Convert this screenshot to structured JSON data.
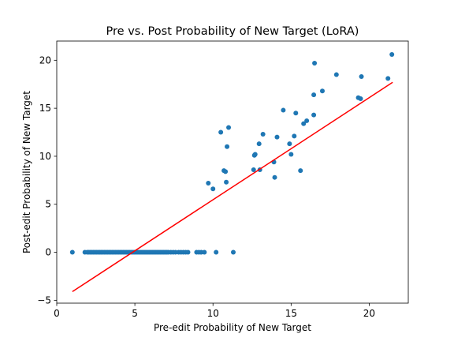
{
  "chart_data": {
    "type": "scatter",
    "title": "Pre vs. Post Probability of New Target (LoRA)",
    "xlabel": "Pre-edit Probability of New Target",
    "ylabel": "Post-edit Probability of New Target",
    "xlim": [
      0,
      22.5
    ],
    "ylim": [
      -5.3,
      22.0
    ],
    "xticks": [
      0,
      5,
      10,
      15,
      20
    ],
    "yticks": [
      -5,
      0,
      5,
      10,
      15,
      20
    ],
    "xtick_labels": [
      "0",
      "5",
      "10",
      "15",
      "20"
    ],
    "ytick_labels": [
      "−5",
      "0",
      "5",
      "10",
      "15",
      "20"
    ],
    "grid": false,
    "point_color": "#1f77b4",
    "line_color": "#ff0000",
    "fit_line": {
      "x": [
        1.0,
        21.5
      ],
      "y": [
        -4.1,
        17.7
      ]
    },
    "series": [
      {
        "x": [
          1.0,
          1.8,
          1.95,
          2.05,
          2.15,
          2.25,
          2.35,
          2.45,
          2.55,
          2.65,
          2.75,
          2.85,
          2.95,
          3.05,
          3.15,
          3.25,
          3.35,
          3.45,
          3.55,
          3.65,
          3.75,
          3.85,
          3.95,
          4.05,
          4.15,
          4.25,
          4.35,
          4.45,
          4.55,
          4.65,
          4.75,
          4.85,
          4.95,
          5.05,
          5.15,
          5.25,
          5.35,
          5.45,
          5.55,
          5.65,
          5.75,
          5.85,
          5.95,
          6.05,
          6.15,
          6.25,
          6.35,
          6.45,
          6.55,
          6.65,
          6.75,
          6.85,
          6.95,
          7.05,
          7.15,
          7.3,
          7.45,
          7.6,
          7.8,
          7.95,
          8.1,
          8.25,
          8.4,
          8.95,
          9.1,
          9.25,
          9.45,
          10.2,
          11.3,
          9.7,
          10.0,
          10.5,
          10.7,
          10.8,
          10.85,
          10.9,
          11.0,
          12.6,
          12.7,
          12.65,
          12.95,
          13.0,
          13.2,
          13.9,
          13.95,
          14.1,
          14.5,
          14.9,
          15.0,
          15.2,
          15.3,
          15.6,
          15.8,
          16.0,
          16.45,
          16.5,
          16.45,
          17.0,
          17.9,
          19.3,
          19.45,
          19.5,
          21.2,
          21.45
        ],
        "y": [
          0,
          0,
          0,
          0,
          0,
          0,
          0,
          0,
          0,
          0,
          0,
          0,
          0,
          0,
          0,
          0,
          0,
          0,
          0,
          0,
          0,
          0,
          0,
          0,
          0,
          0,
          0,
          0,
          0,
          0,
          0,
          0,
          0,
          0,
          0,
          0,
          0,
          0,
          0,
          0,
          0,
          0,
          0,
          0,
          0,
          0,
          0,
          0,
          0,
          0,
          0,
          0,
          0,
          0,
          0,
          0,
          0,
          0,
          0,
          0,
          0,
          0,
          0,
          0,
          0,
          0,
          0,
          0,
          0,
          7.2,
          6.6,
          12.5,
          8.5,
          8.4,
          7.3,
          11.0,
          13.0,
          8.6,
          10.2,
          10.1,
          11.3,
          8.6,
          12.3,
          9.4,
          7.8,
          12.0,
          14.8,
          11.3,
          10.2,
          12.1,
          14.5,
          8.5,
          13.4,
          13.7,
          16.4,
          19.7,
          14.3,
          16.8,
          18.5,
          16.1,
          16.0,
          18.3,
          18.1,
          20.6
        ]
      }
    ]
  }
}
